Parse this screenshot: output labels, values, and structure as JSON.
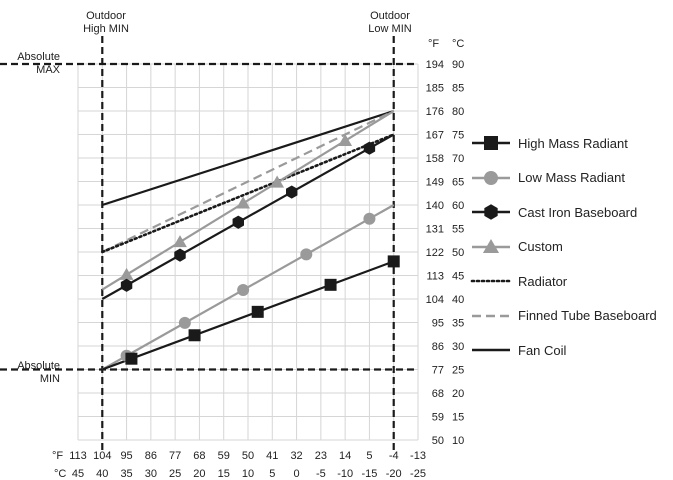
{
  "annotations": {
    "outdoor_high_min": [
      "Outdoor",
      "High MIN"
    ],
    "outdoor_low_min": [
      "Outdoor",
      "Low MIN"
    ],
    "absolute_max": [
      "Absolute",
      "MAX"
    ],
    "absolute_min": [
      "Absolute",
      "MIN"
    ]
  },
  "colors": {
    "dark": "#1a1a1a",
    "gray": "#9a9a9a",
    "grid": "#d6d6d6"
  },
  "chart_data": {
    "type": "line",
    "x_axis": {
      "unit_f": "°F",
      "unit_c": "°C",
      "ticks_f": [
        "113",
        "104",
        "95",
        "86",
        "77",
        "68",
        "59",
        "50",
        "41",
        "32",
        "23",
        "14",
        "5",
        "-4",
        "-13"
      ],
      "ticks_c": [
        "45",
        "40",
        "35",
        "30",
        "25",
        "20",
        "15",
        "10",
        "5",
        "0",
        "-5",
        "-10",
        "-15",
        "-20",
        "-25"
      ],
      "range_c": [
        45,
        -25
      ]
    },
    "y_axis": {
      "unit_f": "°F",
      "unit_c": "°C",
      "ticks_f": [
        "50",
        "59",
        "68",
        "77",
        "86",
        "95",
        "104",
        "113",
        "122",
        "131",
        "140",
        "149",
        "158",
        "167",
        "176",
        "185",
        "194"
      ],
      "ticks_c": [
        "10",
        "15",
        "20",
        "25",
        "30",
        "35",
        "40",
        "45",
        "50",
        "55",
        "60",
        "65",
        "70",
        "75",
        "80",
        "85",
        "90"
      ],
      "range_c": [
        10,
        90
      ]
    },
    "grid": true,
    "reference_lines": {
      "outdoor_high_min_c": 40,
      "outdoor_low_min_c": -20,
      "absolute_max_c": 90,
      "absolute_min_c": 25
    },
    "series": [
      {
        "name": "High Mass Radiant",
        "color": "#1a1a1a",
        "style": "solid",
        "marker": "square",
        "x": [
          40,
          -20
        ],
        "y": [
          25,
          48
        ],
        "marker_x": [
          34,
          21,
          8,
          -7,
          -20
        ]
      },
      {
        "name": "Low Mass Radiant",
        "color": "#9a9a9a",
        "style": "solid",
        "marker": "circle",
        "x": [
          40,
          -20
        ],
        "y": [
          25,
          60
        ],
        "marker_x": [
          35,
          23,
          11,
          -2,
          -15
        ]
      },
      {
        "name": "Cast Iron Baseboard",
        "color": "#1a1a1a",
        "style": "solid",
        "marker": "hexagon",
        "x": [
          40,
          -20
        ],
        "y": [
          40,
          75
        ],
        "marker_x": [
          35,
          24,
          12,
          1,
          -15
        ]
      },
      {
        "name": "Custom",
        "color": "#9a9a9a",
        "style": "solid",
        "marker": "triangle",
        "x": [
          40,
          -20
        ],
        "y": [
          42,
          80
        ],
        "marker_x": [
          35,
          24,
          11,
          4,
          -10
        ]
      },
      {
        "name": "Radiator",
        "color": "#1a1a1a",
        "style": "dotted",
        "marker": "none",
        "x": [
          40,
          -20
        ],
        "y": [
          50,
          75
        ],
        "marker_x": []
      },
      {
        "name": "Finned Tube Baseboard",
        "color": "#9a9a9a",
        "style": "dashed",
        "marker": "none",
        "x": [
          40,
          -20
        ],
        "y": [
          50,
          80
        ],
        "marker_x": []
      },
      {
        "name": "Fan Coil",
        "color": "#1a1a1a",
        "style": "solid",
        "marker": "none",
        "x": [
          40,
          -20
        ],
        "y": [
          60,
          80
        ],
        "marker_x": []
      }
    ]
  }
}
